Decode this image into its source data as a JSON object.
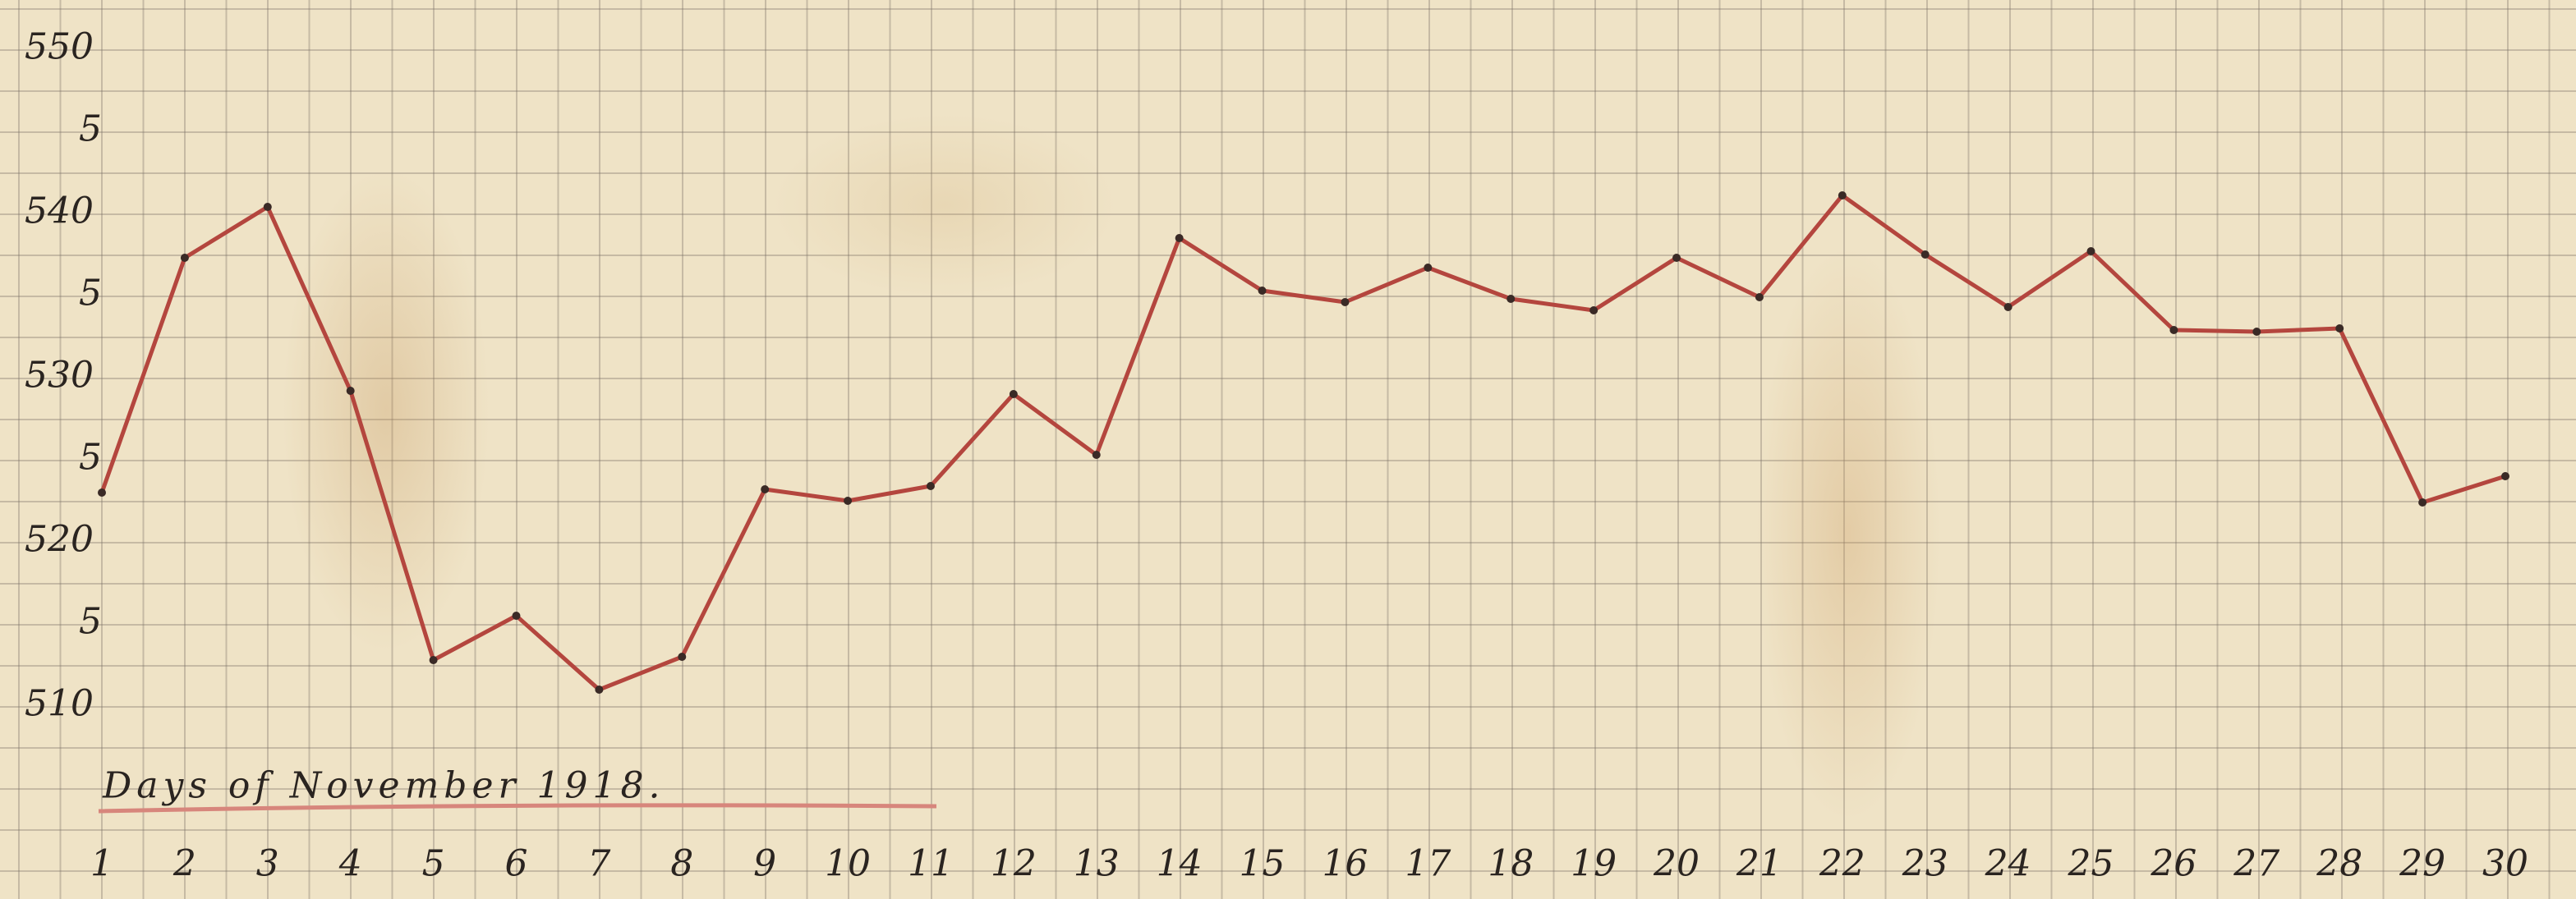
{
  "chart_data": {
    "type": "line",
    "title": "Days of November 1918.",
    "categories": [
      "1",
      "2",
      "3",
      "4",
      "5",
      "6",
      "7",
      "8",
      "9",
      "10",
      "11",
      "12",
      "13",
      "14",
      "15",
      "16",
      "17",
      "18",
      "19",
      "20",
      "21",
      "22",
      "23",
      "24",
      "25",
      "26",
      "27",
      "28",
      "29",
      "30"
    ],
    "series": [
      {
        "color": "#b4463e",
        "values": [
          523,
          537.3,
          540.4,
          529.2,
          512.8,
          515.5,
          511,
          513,
          523.2,
          522.5,
          523.4,
          529,
          525.3,
          538.5,
          535.3,
          534.6,
          536.7,
          534.8,
          534.1,
          537.3,
          534.9,
          541.1,
          537.5,
          534.3,
          537.7,
          532.9,
          532.8,
          533,
          522.4,
          524
        ]
      }
    ],
    "ylim": [
      510,
      550
    ],
    "yticks": [
      510,
      {
        "value": 515,
        "label": "5"
      },
      520,
      {
        "value": 525,
        "label": "5"
      },
      530,
      {
        "value": 535,
        "label": "5"
      },
      540,
      {
        "value": 545,
        "label": "5"
      },
      550
    ]
  }
}
